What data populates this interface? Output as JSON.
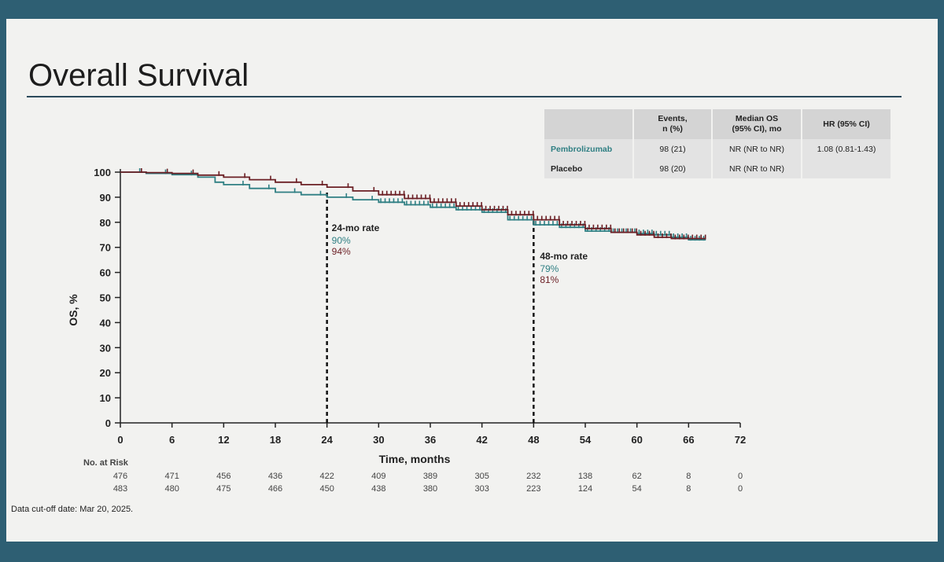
{
  "title": "Overall Survival",
  "footnote": "Data cut-off date: Mar 20, 2025.",
  "colors": {
    "pembrolizumab": "#2f7f83",
    "placebo": "#6b1f24",
    "text": "#222222"
  },
  "table": {
    "headers": [
      "",
      "Events,\nn (%)",
      "Median OS\n(95% CI), mo",
      "HR (95% CI)"
    ],
    "rows": [
      {
        "arm": "Pembrolizumab",
        "events": "98 (21)",
        "median": "NR (NR to NR)",
        "hr": "1.08 (0.81-1.43)"
      },
      {
        "arm": "Placebo",
        "events": "98 (20)",
        "median": "NR (NR to NR)",
        "hr": ""
      }
    ]
  },
  "chart_data": {
    "type": "line",
    "xlabel": "Time, months",
    "ylabel": "OS, %",
    "xlim": [
      0,
      72
    ],
    "ylim": [
      0,
      100
    ],
    "xticks": [
      0,
      6,
      12,
      18,
      24,
      30,
      36,
      42,
      48,
      54,
      60,
      66,
      72
    ],
    "yticks": [
      0,
      10,
      20,
      30,
      40,
      50,
      60,
      70,
      80,
      90,
      100
    ],
    "series": [
      {
        "name": "Pembrolizumab",
        "color": "#2f7f83",
        "x": [
          0,
          3,
          6,
          9,
          11,
          12,
          15,
          18,
          21,
          24,
          27,
          30,
          33,
          36,
          39,
          42,
          45,
          48,
          51,
          54,
          57,
          60,
          62,
          64,
          66,
          68
        ],
        "y": [
          100,
          99.5,
          99,
          98,
          96,
          95,
          93.5,
          92,
          91,
          90,
          89,
          88,
          87,
          86,
          85,
          84,
          81,
          79,
          78,
          76.5,
          76,
          75.5,
          75,
          74,
          73,
          73
        ]
      },
      {
        "name": "Placebo",
        "color": "#6b1f24",
        "x": [
          0,
          3,
          6,
          9,
          12,
          15,
          18,
          21,
          24,
          27,
          30,
          33,
          36,
          39,
          42,
          45,
          48,
          51,
          54,
          57,
          60,
          62,
          64,
          66,
          68
        ],
        "y": [
          100,
          99.8,
          99.5,
          98.8,
          98,
          97,
          96,
          95,
          94,
          92.5,
          91,
          89.5,
          88,
          86.5,
          85,
          83,
          81,
          79,
          77.5,
          76,
          75,
          74,
          73.5,
          73.5,
          73.5
        ]
      }
    ],
    "reference_lines": [
      {
        "x": 24,
        "label": "24-mo rate",
        "values": [
          {
            "series": "Pembrolizumab",
            "text": "90%"
          },
          {
            "series": "Placebo",
            "text": "94%"
          }
        ]
      },
      {
        "x": 48,
        "label": "48-mo rate",
        "values": [
          {
            "series": "Pembrolizumab",
            "text": "79%"
          },
          {
            "series": "Placebo",
            "text": "81%"
          }
        ]
      }
    ],
    "risk_table": {
      "title": "No. at Risk",
      "times": [
        0,
        6,
        12,
        18,
        24,
        30,
        36,
        42,
        48,
        54,
        60,
        66,
        72
      ],
      "rows": [
        {
          "series": "Pembrolizumab",
          "values": [
            476,
            471,
            456,
            436,
            422,
            409,
            389,
            305,
            232,
            138,
            62,
            8,
            0
          ]
        },
        {
          "series": "Placebo",
          "values": [
            483,
            480,
            475,
            466,
            450,
            438,
            380,
            303,
            223,
            124,
            54,
            8,
            0
          ]
        }
      ]
    }
  }
}
